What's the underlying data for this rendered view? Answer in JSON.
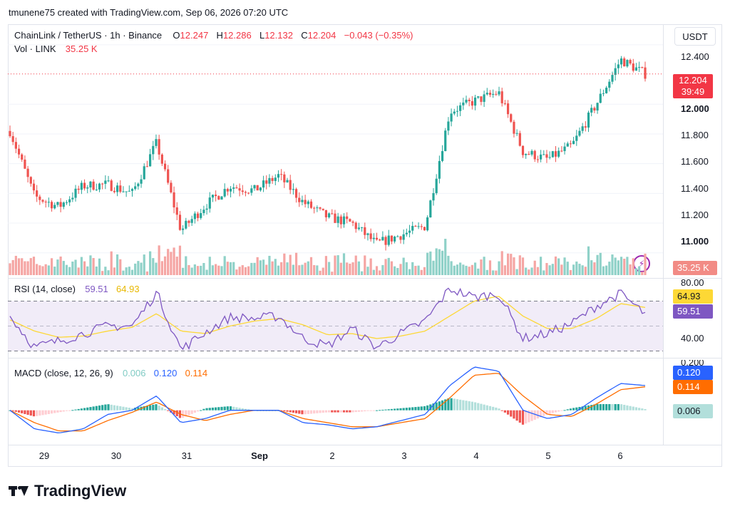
{
  "header": {
    "credit": "tmunene75 created with TradingView.com, Sep 06, 2026 07:20 UTC"
  },
  "legend": {
    "symbol": "ChainLink / TetherUS · 1h · Binance",
    "open_label": "O",
    "open": "12.247",
    "high_label": "H",
    "high": "12.286",
    "low_label": "L",
    "low": "12.132",
    "close_label": "C",
    "close": "12.204",
    "change": "−0.043 (−0.35%)",
    "vol_label": "Vol · LINK",
    "vol_value": "35.25 K"
  },
  "price_axis": {
    "unit": "USDT",
    "ticks": [
      "12.400",
      "12.000",
      "11.800",
      "11.600",
      "11.400",
      "11.200",
      "11.000"
    ],
    "bold_ticks": [
      "12.000",
      "11.000"
    ],
    "current_price": "12.204",
    "countdown": "39:49",
    "volume_badge": "35.25 K"
  },
  "rsi": {
    "label": "RSI (14, close)",
    "rsi_value": "59.51",
    "ma_value": "64.93",
    "ticks": [
      "80.00",
      "40.00"
    ]
  },
  "macd": {
    "label": "MACD (close, 12, 26, 9)",
    "hist_value": "0.006",
    "macd_value": "0.120",
    "signal_value": "0.114",
    "top_tick": "0.200"
  },
  "time_axis": {
    "ticks": [
      "29",
      "30",
      "31",
      "Sep",
      "2",
      "3",
      "4",
      "5",
      "6"
    ]
  },
  "footer": {
    "logo": "TradingView"
  },
  "colors": {
    "up": "#26a69a",
    "down": "#ef5350",
    "rsi_line": "#7e57c2",
    "rsi_ma": "#fdd835",
    "macd_line": "#2962ff",
    "signal_line": "#ff6d00",
    "hist_up": "#26a69a",
    "hist_down": "#ef5350",
    "price_line": "#f23645"
  },
  "chart_data": [
    {
      "type": "candlestick",
      "title": "ChainLink / TetherUS · 1h · Binance",
      "x": [
        "Aug 28 21:00",
        "Aug 29 05:00",
        "Aug 29 13:00",
        "Aug 29 21:00",
        "Aug 30 05:00",
        "Aug 30 13:00",
        "Aug 30 21:00",
        "Aug 31 05:00",
        "Aug 31 13:00",
        "Aug 31 21:00",
        "Sep 1 05:00",
        "Sep 1 13:00",
        "Sep 1 21:00",
        "Sep 2 05:00",
        "Sep 2 13:00",
        "Sep 2 21:00",
        "Sep 3 05:00",
        "Sep 3 13:00",
        "Sep 3 21:00",
        "Sep 4 05:00",
        "Sep 4 13:00",
        "Sep 4 21:00",
        "Sep 5 05:00",
        "Sep 5 13:00",
        "Sep 5 21:00",
        "Sep 6 05:00",
        "Sep 6 07:00"
      ],
      "close": [
        11.82,
        11.38,
        11.31,
        11.45,
        11.46,
        11.4,
        11.74,
        11.15,
        11.32,
        11.45,
        11.42,
        11.52,
        11.34,
        11.24,
        11.2,
        11.06,
        11.12,
        11.18,
        11.95,
        12.02,
        12.08,
        11.68,
        11.63,
        11.72,
        12.0,
        12.3,
        12.204
      ],
      "ylim": [
        10.85,
        12.5
      ],
      "yticks": [
        11.0,
        11.2,
        11.4,
        11.6,
        11.8,
        12.0,
        12.4
      ],
      "volume_last": "35.25 K"
    },
    {
      "type": "line",
      "title": "RSI (14, close)",
      "series": [
        {
          "name": "RSI",
          "values": [
            58,
            33,
            38,
            44,
            50,
            50,
            77,
            31,
            45,
            57,
            56,
            58,
            40,
            34,
            48,
            33,
            44,
            54,
            80,
            73,
            76,
            40,
            44,
            52,
            66,
            76,
            59.51
          ]
        },
        {
          "name": "MA",
          "values": [
            55,
            46,
            41,
            42,
            46,
            49,
            60,
            46,
            44,
            50,
            54,
            56,
            51,
            43,
            44,
            40,
            42,
            46,
            58,
            70,
            74,
            58,
            48,
            48,
            56,
            68,
            64.93
          ]
        }
      ],
      "ylim": [
        28,
        84
      ],
      "bands": [
        30,
        50,
        70
      ]
    },
    {
      "type": "line",
      "title": "MACD (close, 12, 26, 9)",
      "series": [
        {
          "name": "MACD",
          "values": [
            0.0,
            -0.09,
            -0.11,
            -0.09,
            -0.02,
            0.0,
            0.07,
            -0.06,
            -0.04,
            0.0,
            0.0,
            0.0,
            -0.06,
            -0.07,
            -0.09,
            -0.08,
            -0.05,
            -0.02,
            0.12,
            0.21,
            0.19,
            0.0,
            -0.04,
            -0.02,
            0.06,
            0.13,
            0.12
          ]
        },
        {
          "name": "Signal",
          "values": [
            0.0,
            -0.06,
            -0.1,
            -0.1,
            -0.05,
            -0.01,
            0.04,
            -0.02,
            -0.05,
            -0.02,
            0.0,
            0.0,
            -0.04,
            -0.06,
            -0.08,
            -0.08,
            -0.06,
            -0.04,
            0.06,
            0.17,
            0.18,
            0.07,
            -0.02,
            -0.03,
            0.03,
            0.1,
            0.114
          ]
        },
        {
          "name": "Histogram",
          "values": [
            0.0,
            -0.03,
            -0.01,
            0.01,
            0.03,
            0.01,
            0.03,
            -0.04,
            0.01,
            0.02,
            0.0,
            0.0,
            -0.02,
            -0.01,
            -0.01,
            0.0,
            0.01,
            0.02,
            0.06,
            0.04,
            0.01,
            -0.07,
            -0.02,
            0.01,
            0.03,
            0.03,
            0.006
          ]
        }
      ],
      "ylim": [
        -0.16,
        0.22
      ]
    }
  ]
}
